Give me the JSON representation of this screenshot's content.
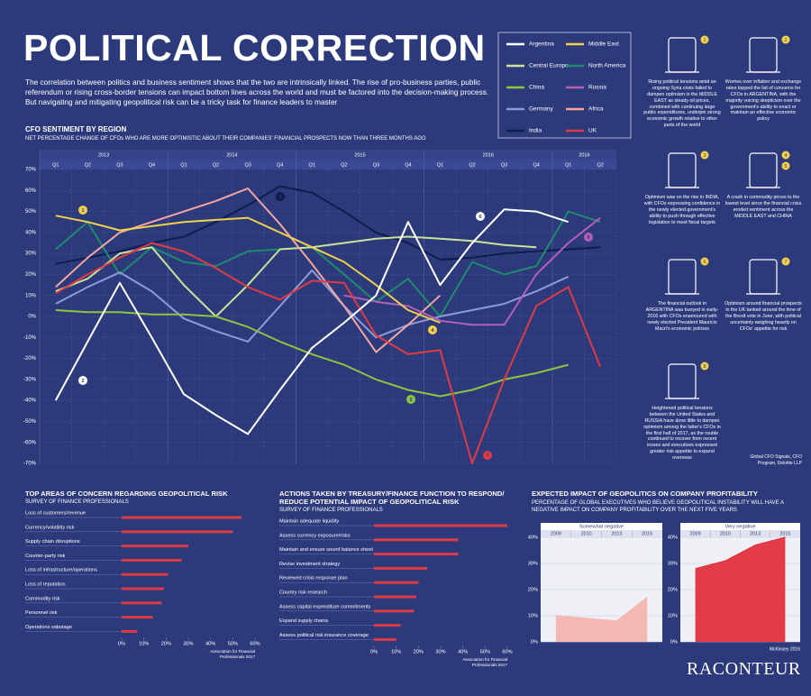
{
  "header": {
    "title": "POLITICAL CORRECTION",
    "intro": "The correlation between politics and business sentiment shows that the two are intrinsically linked. The rise of pro-business parties, public referendum or rising cross-border tensions can impact bottom lines across the world and must be factored into the decision-making process. But navigating and mitigating geopolitical risk can be a tricky task for finance leaders to master"
  },
  "annotations": [
    {
      "badges": [
        "1"
      ],
      "text": "Rising political tensions amid an ongoing Syria crisis failed to dampen optimism in the MIDDLE EAST as steady oil prices, combined with continuing large public expenditures, underpin strong economic growth relative to other parts of the world"
    },
    {
      "badges": [
        "2"
      ],
      "text": "Worries over inflation and exchange rates topped the list of concerns for CFOs in ARGENTINA, with the majority voicing skepticism over the government's ability to enact or maintain an effective economic policy"
    },
    {
      "badges": [
        "3"
      ],
      "text": "Optimism was on the rise in INDIA, with CFOs expressing confidence in the newly elected government's ability to push through effective legislation to meet fiscal targets"
    },
    {
      "badges": [
        "4",
        "5"
      ],
      "text": "A crash in commodity prices to the lowest level since the financial crisis eroded sentiment across the MIDDLE EAST and CHINA"
    },
    {
      "badges": [
        "6"
      ],
      "text": "The financial outlook in ARGENTINA was buoyed in early-2016 with CFOs enamoured with newly elected President Mauricio Macri's economic policies"
    },
    {
      "badges": [
        "7"
      ],
      "text": "Optimism around financial prospects in the UK tanked around the time of the Brexit vote in June, with political uncertainty weighing heavily on CFOs' appetite for risk"
    },
    {
      "badges": [
        "8"
      ],
      "text": "Heightened political tensions between the United States and RUSSIA have done little to dampen optimism among the latter's CFOs in the first half of 2017, as the rouble continued to recover from recent losses and executives expressed greater risk appetite to expand overseas"
    }
  ],
  "annotation_source": "Global CFO Signals, CFO Program, Deloitte LLP",
  "brand": "RACONTEUR",
  "chart_data": [
    {
      "type": "line",
      "title": "CFO SENTIMENT BY REGION",
      "subtitle": "NET PERCENTAGE CHANGE OF CFOs WHO ARE MORE OPTIMISTIC ABOUT THEIR COMPANIES' FINANCIAL PROSPECTS NOW THAN THREE MONTHS AGO",
      "year_labels": [
        "2013",
        "2014",
        "2015",
        "2016",
        "2016"
      ],
      "categories": [
        "Q1",
        "Q2",
        "Q3",
        "Q4",
        "Q1",
        "Q2",
        "Q3",
        "Q4",
        "Q1",
        "Q2",
        "Q3",
        "Q4",
        "Q1",
        "Q2",
        "Q3",
        "Q4",
        "Q1",
        "Q2"
      ],
      "ylim": [
        -70,
        70
      ],
      "yticks": [
        {
          "value": 70,
          "label": "70%"
        },
        {
          "value": 60,
          "label": "60%"
        },
        {
          "value": 50,
          "label": "50%"
        },
        {
          "value": 40,
          "label": "40%"
        },
        {
          "value": 30,
          "label": "30%"
        },
        {
          "value": 20,
          "label": "20%"
        },
        {
          "value": 10,
          "label": "10%"
        },
        {
          "value": 0,
          "label": "0%"
        },
        {
          "value": -10,
          "label": "-10%"
        },
        {
          "value": -20,
          "label": "-20%"
        },
        {
          "value": -30,
          "label": "-30%"
        },
        {
          "value": -40,
          "label": "-40%"
        },
        {
          "value": -50,
          "label": "-50%"
        },
        {
          "value": -60,
          "label": "-60%"
        },
        {
          "value": -70,
          "label": "-70%"
        }
      ],
      "grid": true,
      "markers": [
        "1",
        "2",
        "3",
        "4",
        "5",
        "6",
        "7",
        "8"
      ],
      "series": [
        {
          "name": "Argentina",
          "color": "#ffffff",
          "values": [
            -40,
            -12,
            16,
            -10,
            -37,
            -47,
            -56,
            -35,
            -15,
            -3,
            10,
            45,
            15,
            35,
            51,
            50,
            45,
            null
          ]
        },
        {
          "name": "Middle East",
          "color": "#f2d04a",
          "values": [
            48,
            45,
            41,
            43,
            45,
            46,
            47,
            40,
            33,
            26,
            15,
            3,
            -3,
            null,
            null,
            null,
            null,
            null
          ]
        },
        {
          "name": "Central Europe",
          "color": "#c9e39a",
          "values": [
            12,
            18,
            30,
            33,
            15,
            0,
            15,
            32,
            33,
            35,
            37,
            38,
            37,
            36,
            34,
            33,
            null,
            null
          ]
        },
        {
          "name": "North America",
          "color": "#1f8a6e",
          "values": [
            32,
            45,
            20,
            33,
            26,
            24,
            31,
            32,
            33,
            20,
            7,
            18,
            0,
            26,
            20,
            24,
            50,
            45
          ]
        },
        {
          "name": "China",
          "color": "#8cc63f",
          "values": [
            3,
            2,
            2,
            1,
            1,
            0,
            -5,
            -12,
            -18,
            -23,
            -30,
            -35,
            -38,
            -35,
            -30,
            -27,
            -23,
            null
          ]
        },
        {
          "name": "Russia",
          "color": "#b45fb8",
          "values": [
            null,
            null,
            null,
            null,
            null,
            null,
            null,
            null,
            null,
            10,
            7,
            5,
            -2,
            -4,
            -4,
            20,
            35,
            47
          ]
        },
        {
          "name": "Germany",
          "color": "#8f9bd6",
          "values": [
            6,
            14,
            21,
            12,
            -1,
            -7,
            -12,
            5,
            22,
            5,
            -10,
            -4,
            0,
            3,
            6,
            12,
            19,
            null
          ]
        },
        {
          "name": "Africa",
          "color": "#f4a6a0",
          "values": [
            14,
            28,
            40,
            45,
            50,
            55,
            61,
            44,
            25,
            5,
            -17,
            -4,
            10,
            null,
            null,
            null,
            null,
            null
          ]
        },
        {
          "name": "India",
          "color": "#101c4d",
          "values": [
            25,
            28,
            31,
            35,
            38,
            45,
            53,
            62,
            59,
            50,
            40,
            35,
            27,
            28,
            30,
            31,
            32,
            33
          ]
        },
        {
          "name": "UK",
          "color": "#e03a44",
          "values": [
            11,
            20,
            28,
            35,
            31,
            23,
            14,
            8,
            17,
            16,
            -9,
            -18,
            -16,
            -70,
            -30,
            5,
            14,
            -24
          ]
        }
      ]
    },
    {
      "type": "bar",
      "orientation": "horizontal",
      "title": "TOP AREAS OF CONCERN REGARDING GEOPOLITICAL RISK",
      "subtitle": "SURVEY OF FINANCE PROFESSIONALS",
      "source": "Association for Financial Professionals 2017",
      "color": "#e03a44",
      "categories": [
        "Loss of customers/revenue",
        "Currency/volatility risk",
        "Supply chain disruptions",
        "Counter-party risk",
        "Loss of infrastructure/operations",
        "Loss of reputation",
        "Commodity risk",
        "Personnel risk",
        "Operations sabotage"
      ],
      "values": [
        54,
        50,
        30,
        27,
        21,
        19,
        18,
        14,
        7
      ],
      "xlim": [
        0,
        60
      ],
      "xticks": [
        {
          "value": 0,
          "label": "0%"
        },
        {
          "value": 10,
          "label": "10%"
        },
        {
          "value": 20,
          "label": "20%"
        },
        {
          "value": 30,
          "label": "30%"
        },
        {
          "value": 40,
          "label": "40%"
        },
        {
          "value": 50,
          "label": "50%"
        },
        {
          "value": 60,
          "label": "60%"
        }
      ]
    },
    {
      "type": "bar",
      "orientation": "horizontal",
      "title": "ACTIONS TAKEN BY TREASURY/FINANCE FUNCTION TO RESPOND/ REDUCE POTENTIAL IMPACT OF GEOPOLITICAL RISK",
      "subtitle": "SURVEY OF FINANCE PROFESSIONALS",
      "source": "Association for Financial Professionals 2017",
      "color": "#e03a44",
      "categories": [
        "Maintain adequate liquidity",
        "Assess currency exposure/risks",
        "Maintain and ensure sound balance sheet",
        "Revise investment strategy",
        "Reviewed crisis response plan",
        "Country risk research",
        "Assess capital expenditure commitments",
        "Expand supply chains",
        "Assess political risk insurance coverage"
      ],
      "values": [
        60,
        38,
        38,
        24,
        20,
        19,
        18,
        12,
        10
      ],
      "xlim": [
        0,
        60
      ],
      "xticks": [
        {
          "value": 0,
          "label": "0%"
        },
        {
          "value": 10,
          "label": "10%"
        },
        {
          "value": 20,
          "label": "20%"
        },
        {
          "value": 30,
          "label": "30%"
        },
        {
          "value": 40,
          "label": "40%"
        },
        {
          "value": 50,
          "label": "50%"
        },
        {
          "value": 60,
          "label": "60%"
        }
      ]
    },
    {
      "type": "area",
      "title": "EXPECTED IMPACT OF GEOPOLITICS ON COMPANY PROFITABILITY",
      "subtitle": "PERCENTAGE OF GLOBAL EXECUTIVES WHO BELIEVE GEOPOLITICAL INSTABILITY WILL HAVE A NEGATIVE IMPACT ON COMPANY PROFITABILITY OVER THE NEXT FIVE YEARS",
      "panel_title": "Somewhat negative",
      "color": "#f4b3ae",
      "categories": [
        "2009",
        "2010",
        "2013",
        "2015"
      ],
      "values": [
        10,
        9,
        8,
        17
      ],
      "ylim": [
        0,
        40
      ],
      "yticks": [
        {
          "value": 0,
          "label": "0%"
        },
        {
          "value": 10,
          "label": "10%"
        },
        {
          "value": 20,
          "label": "20%"
        },
        {
          "value": 30,
          "label": "30%"
        },
        {
          "value": 40,
          "label": "40%"
        }
      ]
    },
    {
      "type": "area",
      "panel_title": "Very negative",
      "source": "McKinsey 2016",
      "color": "#e0313f",
      "categories": [
        "2009",
        "2010",
        "2013",
        "2015"
      ],
      "values": [
        28,
        31,
        37,
        40
      ],
      "ylim": [
        0,
        40
      ],
      "yticks": [
        {
          "value": 0,
          "label": "0%"
        },
        {
          "value": 10,
          "label": "10%"
        },
        {
          "value": 20,
          "label": "20%"
        },
        {
          "value": 30,
          "label": "30%"
        },
        {
          "value": 40,
          "label": "40%"
        }
      ]
    }
  ]
}
